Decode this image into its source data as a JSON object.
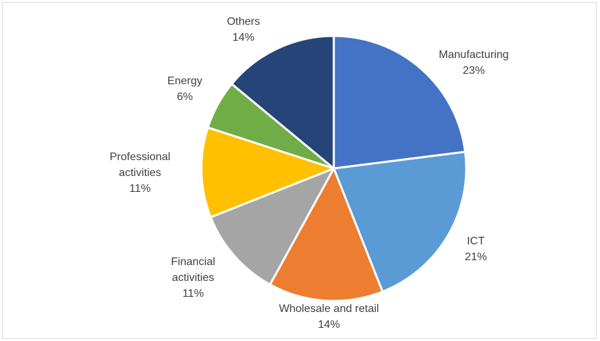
{
  "chart_data": {
    "type": "pie",
    "title": "",
    "slices": [
      {
        "label": "Manufacturing",
        "value": 23,
        "value_label": "23%",
        "color": "#4472C4"
      },
      {
        "label": "ICT",
        "value": 21,
        "value_label": "21%",
        "color": "#5B9BD5"
      },
      {
        "label": "Wholesale and retail",
        "value": 14,
        "value_label": "14%",
        "color": "#ED7D31"
      },
      {
        "label": "Financial activities",
        "value": 11,
        "value_label": "11%",
        "color": "#A5A5A5"
      },
      {
        "label": "Professional activities",
        "value": 11,
        "value_label": "11%",
        "color": "#FFC000"
      },
      {
        "label": "Energy",
        "value": 6,
        "value_label": "6%",
        "color": "#70AD47"
      },
      {
        "label": "Others",
        "value": 14,
        "value_label": "14%",
        "color": "#264478"
      }
    ],
    "start_angle": "12 o'clock",
    "direction": "clockwise",
    "legend": "none"
  }
}
